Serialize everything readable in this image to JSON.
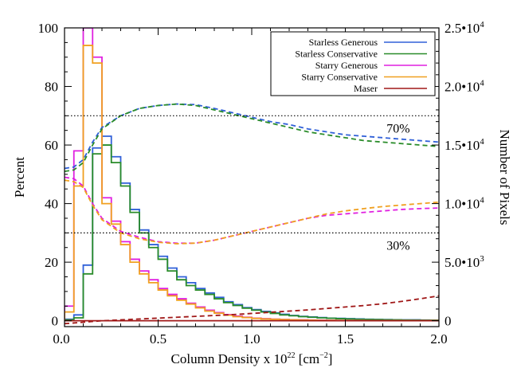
{
  "chart_data": {
    "type": "line",
    "xlabel": "Column Density x 10",
    "xlabel_exp": "22",
    "xlabel_unit": " [cm",
    "xlabel_unit_exp": "−2",
    "xlabel_unit_close": "]",
    "ylabel": "Percent",
    "y2label": "Number of Pixels",
    "xlim": [
      0,
      2.0
    ],
    "ylim": [
      -2,
      100
    ],
    "y2lim": [
      -500,
      25000
    ],
    "x_ticks": [
      "0.0",
      "0.5",
      "1.0",
      "1.5",
      "2.0"
    ],
    "y_ticks": [
      "0",
      "20",
      "40",
      "60",
      "80",
      "100"
    ],
    "y2_ticks": [
      {
        "value": 0,
        "mantissa": "0",
        "exp": ""
      },
      {
        "value": 5000,
        "mantissa": "5.0•10",
        "exp": "3"
      },
      {
        "value": 10000,
        "mantissa": "1.0•10",
        "exp": "4"
      },
      {
        "value": 15000,
        "mantissa": "1.5•10",
        "exp": "4"
      },
      {
        "value": 20000,
        "mantissa": "2.0•10",
        "exp": "4"
      },
      {
        "value": 25000,
        "mantissa": "2.5•10",
        "exp": "4"
      }
    ],
    "reference_lines": [
      {
        "y": 70,
        "label": "70%",
        "label_x": 1.72
      },
      {
        "y": 30,
        "label": "30%",
        "label_x": 1.72
      }
    ],
    "bin_edges": [
      0,
      0.05,
      0.1,
      0.15,
      0.2,
      0.25,
      0.3,
      0.35,
      0.4,
      0.45,
      0.5,
      0.55,
      0.6,
      0.65,
      0.7,
      0.75,
      0.8,
      0.85,
      0.9,
      0.95,
      1.0,
      1.05,
      1.1,
      1.15,
      1.2,
      1.25,
      1.3,
      1.35,
      1.4,
      1.45,
      1.5,
      1.55,
      1.6,
      1.65,
      1.7,
      1.75,
      1.8,
      1.85,
      1.9,
      1.95,
      2.0
    ],
    "histograms": [
      {
        "name": "Starless Generous",
        "color": "#3060d8",
        "values": [
          0.5,
          2,
          19,
          59,
          63,
          56,
          47,
          38,
          31,
          26,
          22,
          18,
          15,
          13,
          11,
          9.5,
          8,
          6.5,
          5.5,
          4.5,
          3.8,
          3.2,
          2.7,
          2.2,
          1.8,
          1.5,
          1.3,
          1.1,
          0.9,
          0.8,
          0.7,
          0.6,
          0.5,
          0.45,
          0.4,
          0.35,
          0.3,
          0.3,
          0.25,
          0.2
        ]
      },
      {
        "name": "Starless Conservative",
        "color": "#2a8c2a",
        "values": [
          0.3,
          1,
          16,
          57,
          60,
          54,
          46,
          37,
          30,
          25,
          21,
          17,
          14,
          12,
          10.5,
          9,
          7.5,
          6.2,
          5.2,
          4.3,
          3.6,
          3,
          2.5,
          2,
          1.7,
          1.4,
          1.2,
          1,
          0.85,
          0.7,
          0.6,
          0.5,
          0.45,
          0.4,
          0.35,
          0.3,
          0.25,
          0.25,
          0.2,
          0.2
        ]
      },
      {
        "name": "Starry Generous",
        "color": "#e020e0",
        "values": [
          5,
          58,
          100,
          90,
          42,
          34,
          27,
          21,
          17,
          14,
          11,
          9,
          7.5,
          6,
          4.7,
          3.6,
          2.8,
          2.1,
          1.6,
          1.2,
          0.9,
          0.7,
          0.55,
          0.45,
          0.35,
          0.3,
          0.25,
          0.2,
          0.15,
          0.1,
          0.1,
          0.1,
          0.08,
          0.06,
          0.05,
          0.05,
          0.04,
          0.03,
          0.02,
          0.02
        ]
      },
      {
        "name": "Starry Conservative",
        "color": "#f0a020",
        "values": [
          3,
          46,
          94,
          88,
          40,
          33,
          26,
          20,
          16,
          13,
          10.5,
          8.5,
          7,
          5.7,
          4.4,
          3.3,
          2.6,
          1.9,
          1.4,
          1.1,
          0.8,
          0.6,
          0.5,
          0.4,
          0.3,
          0.25,
          0.2,
          0.15,
          0.12,
          0.1,
          0.08,
          0.06,
          0.05,
          0.04,
          0.03,
          0.02,
          0.02,
          0.01,
          0.01,
          0.01
        ]
      },
      {
        "name": "Maser",
        "color": "#a01818",
        "values": [
          0,
          0,
          0,
          0,
          0,
          0,
          0,
          0,
          0,
          0,
          0,
          0,
          0,
          0,
          0,
          0,
          0,
          0,
          0,
          0,
          0,
          0,
          0,
          0,
          0,
          0,
          0,
          0,
          0,
          0,
          0,
          0,
          0,
          0,
          0,
          0,
          0,
          0,
          0,
          0
        ]
      }
    ],
    "cumulative_series": [
      {
        "name": "Starless Generous",
        "color": "#3060d8",
        "x": [
          0.0,
          0.05,
          0.1,
          0.15,
          0.2,
          0.3,
          0.4,
          0.5,
          0.6,
          0.7,
          0.8,
          0.9,
          1.0,
          1.1,
          1.2,
          1.3,
          1.4,
          1.5,
          1.6,
          1.7,
          1.8,
          1.9,
          2.0
        ],
        "y": [
          52,
          52.5,
          55,
          61,
          66,
          70,
          72.5,
          73.5,
          74,
          73.8,
          72.5,
          71,
          69.5,
          68,
          67,
          65.5,
          64.5,
          63.5,
          63,
          62.5,
          62,
          61.5,
          61
        ]
      },
      {
        "name": "Starless Conservative",
        "color": "#2a8c2a",
        "x": [
          0.0,
          0.05,
          0.1,
          0.15,
          0.2,
          0.3,
          0.4,
          0.5,
          0.6,
          0.7,
          0.8,
          0.9,
          1.0,
          1.1,
          1.2,
          1.3,
          1.4,
          1.5,
          1.6,
          1.7,
          1.8,
          1.9,
          2.0
        ],
        "y": [
          51,
          51.5,
          54,
          60,
          65.5,
          70,
          72.5,
          73.5,
          74,
          73.5,
          72,
          70.5,
          69,
          67.5,
          66,
          64.5,
          63.5,
          62.5,
          61.5,
          61,
          60.5,
          60,
          59.5
        ]
      },
      {
        "name": "Starry Generous",
        "color": "#e020e0",
        "x": [
          0.0,
          0.05,
          0.1,
          0.15,
          0.2,
          0.3,
          0.4,
          0.5,
          0.6,
          0.7,
          0.8,
          0.9,
          1.0,
          1.1,
          1.2,
          1.3,
          1.4,
          1.5,
          1.6,
          1.7,
          1.8,
          1.9,
          2.0
        ],
        "y": [
          49,
          48.5,
          46,
          40,
          35,
          30.5,
          28.5,
          27,
          26.5,
          26.5,
          27.5,
          29,
          30.5,
          32,
          33.5,
          35,
          36,
          36.5,
          37,
          37.5,
          38,
          38.3,
          38.5
        ]
      },
      {
        "name": "Starry Conservative",
        "color": "#f0a020",
        "x": [
          0.0,
          0.05,
          0.1,
          0.15,
          0.2,
          0.3,
          0.4,
          0.5,
          0.6,
          0.7,
          0.8,
          0.9,
          1.0,
          1.1,
          1.2,
          1.3,
          1.4,
          1.5,
          1.6,
          1.7,
          1.8,
          1.9,
          2.0
        ],
        "y": [
          48,
          47.5,
          45.5,
          39.5,
          34.5,
          30,
          28,
          26.8,
          26.3,
          26.5,
          27.5,
          29,
          30.5,
          32,
          33.5,
          35,
          36.5,
          37.5,
          38.3,
          39,
          39.5,
          40,
          40.5
        ]
      },
      {
        "name": "Maser",
        "color": "#a01818",
        "x": [
          0.0,
          0.1,
          0.2,
          0.3,
          0.4,
          0.5,
          0.6,
          0.7,
          0.8,
          0.9,
          1.0,
          1.1,
          1.2,
          1.3,
          1.4,
          1.5,
          1.6,
          1.7,
          1.8,
          1.9,
          2.0
        ],
        "y": [
          -1,
          -0.5,
          0,
          0.3,
          0.6,
          0.9,
          1.2,
          1.5,
          1.8,
          2.1,
          2.5,
          2.9,
          3.3,
          3.7,
          4.2,
          4.7,
          5.2,
          5.8,
          6.6,
          7.5,
          8.5
        ]
      }
    ],
    "legend": {
      "placement": "top-right",
      "entries": [
        {
          "label": "Starless Generous",
          "color": "#3060d8"
        },
        {
          "label": "Starless Conservative",
          "color": "#2a8c2a"
        },
        {
          "label": "Starry Generous",
          "color": "#e020e0"
        },
        {
          "label": "Starry Conservative",
          "color": "#f0a020"
        },
        {
          "label": "Maser",
          "color": "#a01818"
        }
      ]
    },
    "grid": false
  }
}
